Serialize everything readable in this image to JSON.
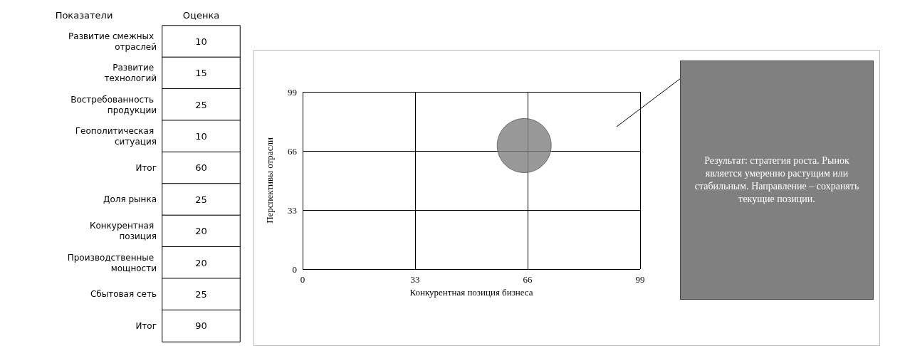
{
  "chart_data": [
    {
      "type": "heatmap",
      "ylabel": "Показатели",
      "categories": [
        "Оценка"
      ],
      "y_categories": [
        "Развитие смежных отраслей",
        "Развитие технологий",
        "Востребованность продукции",
        "Геополитическая ситуация",
        "Итог",
        "Доля рынка",
        "Конкурентная позиция",
        "Производственные мощности",
        "Сбытовая сеть",
        "Итог"
      ],
      "cells": [
        [
          10
        ],
        [
          15
        ],
        [
          25
        ],
        [
          10
        ],
        [
          60
        ],
        [
          25
        ],
        [
          20
        ],
        [
          20
        ],
        [
          25
        ],
        [
          90
        ]
      ],
      "data_labels": true
    },
    {
      "type": "bubble",
      "xlabel": "Конкурентная позиция бизнеса",
      "ylabel": "Перспективы отрасли",
      "series": [
        {
          "color": "#7f7f7f",
          "x": [
            65
          ],
          "values": [
            69
          ],
          "sizes": [
            1
          ]
        }
      ],
      "xlim": [
        0,
        99
      ],
      "ylim": [
        0,
        99
      ],
      "xticks": [
        0,
        33,
        66,
        99
      ],
      "yticks": [
        0,
        33,
        66,
        99
      ],
      "grid": true,
      "annotations": [
        "Результат: стратегия роста. Рынок является умеренно растущим или стабильным. Направление – сохранять текущие позиции."
      ]
    }
  ]
}
